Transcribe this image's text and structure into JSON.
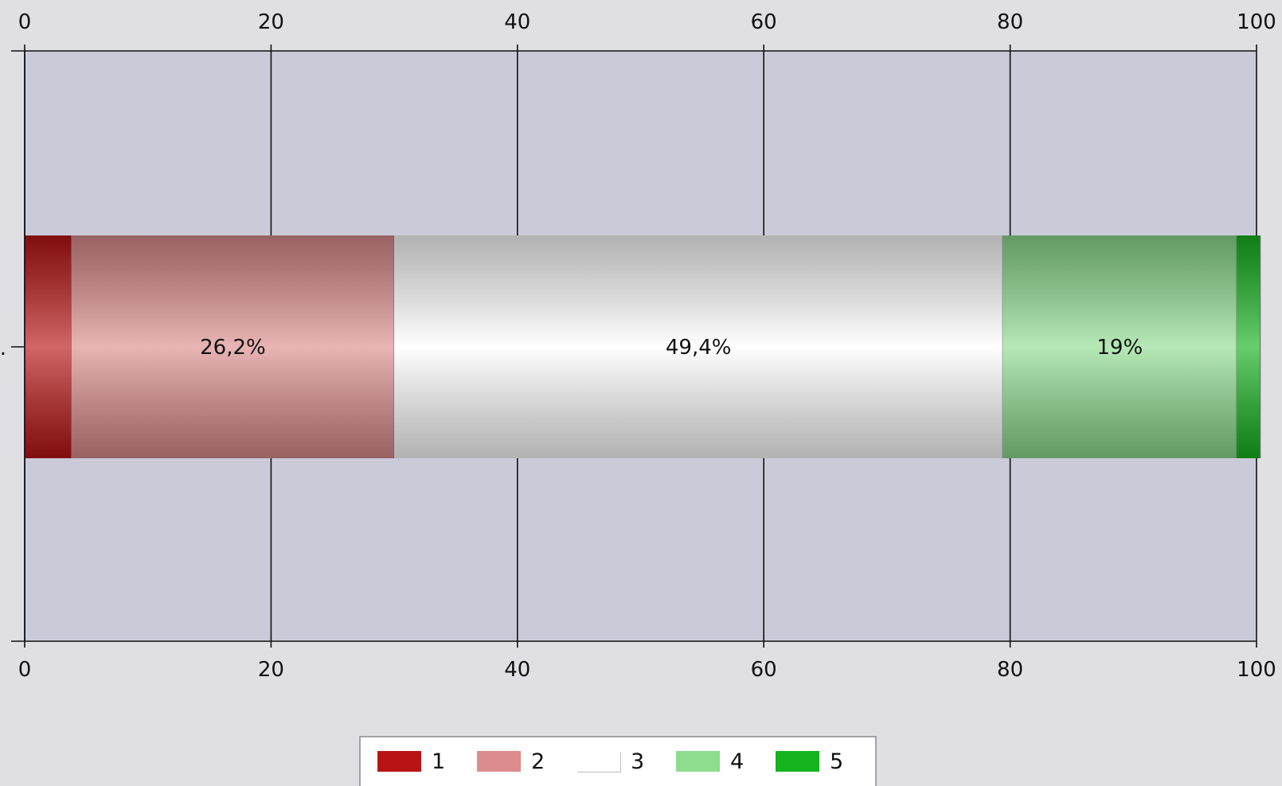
{
  "chart_data": {
    "type": "bar",
    "orientation": "horizontal",
    "stacked": true,
    "xlim": [
      0,
      100
    ],
    "ticks": [
      0,
      20,
      40,
      60,
      80,
      100
    ],
    "tick_labels": [
      "0",
      "20",
      "40",
      "60",
      "80",
      "100"
    ],
    "grid": true,
    "categories": [
      "..."
    ],
    "series": [
      {
        "name": "1",
        "values": [
          3.8
        ],
        "label": "",
        "color": "#b81414"
      },
      {
        "name": "2",
        "values": [
          26.2
        ],
        "label": "26,2%",
        "color": "#dc8c8c"
      },
      {
        "name": "3",
        "values": [
          49.4
        ],
        "label": "49,4%",
        "color": "#ffffff"
      },
      {
        "name": "4",
        "values": [
          19.0
        ],
        "label": "19%",
        "color": "#8edc8e"
      },
      {
        "name": "5",
        "values": [
          1.9
        ],
        "label": "",
        "color": "#14b41e"
      }
    ],
    "legend_position": "bottom-center"
  },
  "colors": {
    "plot_background": "#cbcad9",
    "page_background": "#e0dfe4"
  }
}
